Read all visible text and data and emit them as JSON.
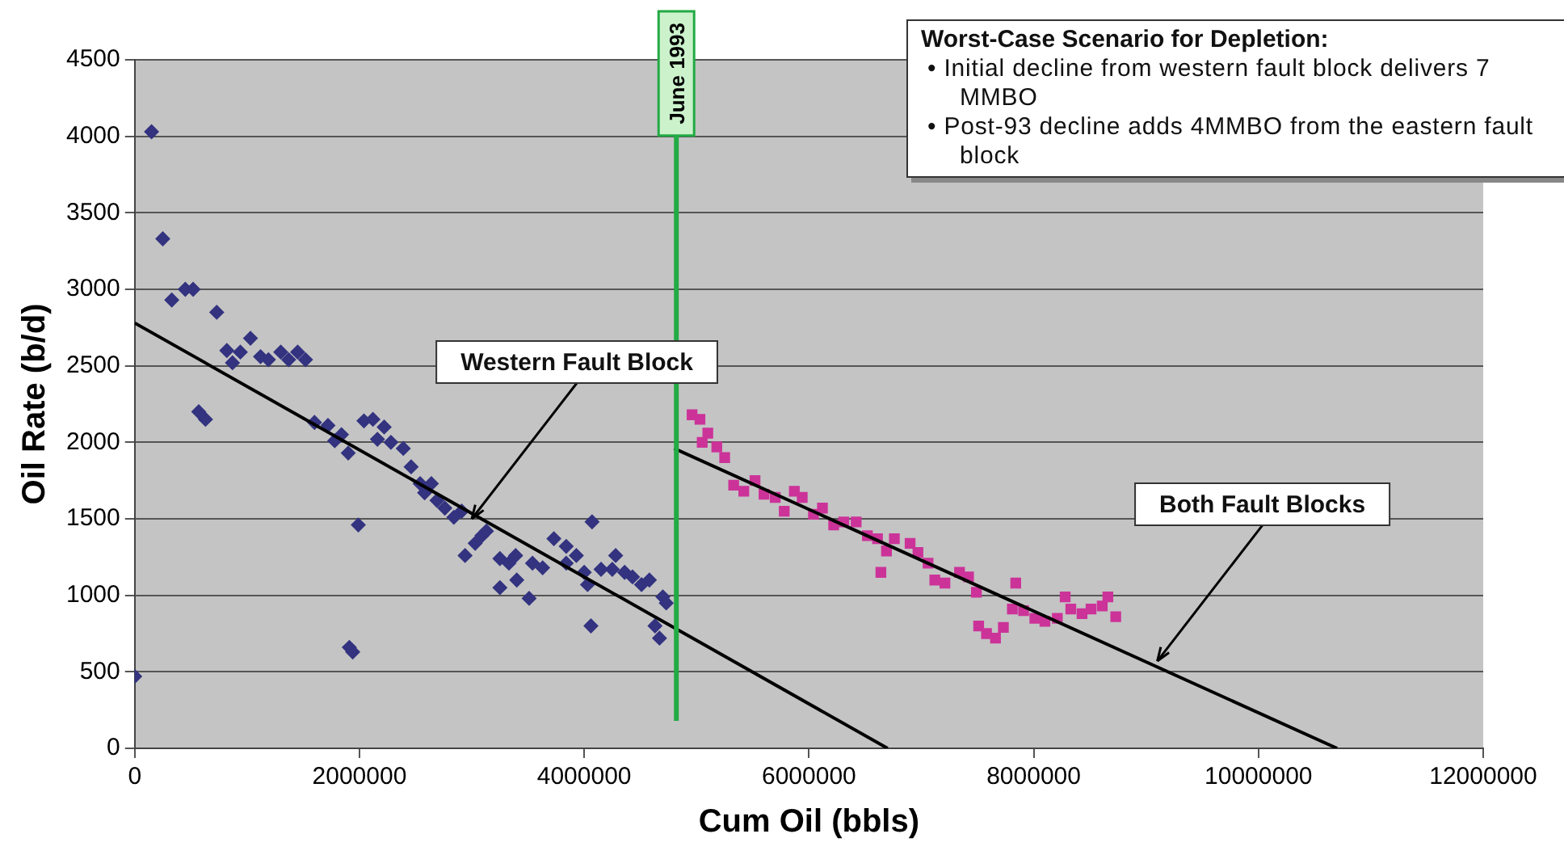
{
  "chart_data": {
    "type": "scatter",
    "xlabel": "Cum Oil (bbls)",
    "ylabel": "Oil Rate (b/d)",
    "xlim": [
      0,
      12000000
    ],
    "xticks": [
      0,
      2000000,
      4000000,
      6000000,
      8000000,
      10000000,
      12000000
    ],
    "ylim": [
      0,
      4500
    ],
    "yticks": [
      0,
      500,
      1000,
      1500,
      2000,
      2500,
      3000,
      3500,
      4000,
      4500
    ],
    "grid": "y",
    "legend": false,
    "series": [
      {
        "type": "scatter",
        "color": "#333380",
        "marker": "diamond",
        "x": [
          0,
          150000,
          250000,
          330000,
          450000,
          520000,
          730000,
          1030000,
          820000,
          870000,
          940000,
          1120000,
          1190000,
          1300000,
          1370000,
          1450000,
          1520000,
          570000,
          630000,
          1600000,
          1720000,
          1840000,
          1780000,
          1900000,
          2040000,
          2120000,
          2220000,
          2160000,
          2280000,
          2390000,
          2460000,
          2540000,
          2640000,
          2580000,
          2690000,
          2760000,
          2840000,
          2910000,
          1990000,
          1910000,
          1940000,
          2940000,
          3030000,
          3090000,
          3130000,
          3250000,
          3330000,
          3390000,
          3250000,
          3400000,
          3510000,
          3540000,
          3630000,
          3730000,
          3840000,
          3930000,
          3840000,
          4000000,
          4070000,
          4030000,
          4060000,
          4150000,
          4280000,
          4250000,
          4360000,
          4430000,
          4510000,
          4580000,
          4700000,
          4730000,
          4630000,
          4670000
        ],
        "values": [
          470,
          4030,
          3330,
          2930,
          3000,
          3000,
          2850,
          2680,
          2600,
          2520,
          2590,
          2560,
          2540,
          2590,
          2540,
          2590,
          2540,
          2200,
          2150,
          2130,
          2110,
          2050,
          2010,
          1930,
          2140,
          2150,
          2100,
          2020,
          2000,
          1960,
          1840,
          1730,
          1730,
          1670,
          1620,
          1570,
          1510,
          1550,
          1460,
          660,
          630,
          1260,
          1340,
          1390,
          1420,
          1240,
          1210,
          1260,
          1050,
          1100,
          980,
          1210,
          1180,
          1370,
          1320,
          1260,
          1210,
          1150,
          1480,
          1070,
          800,
          1170,
          1260,
          1170,
          1150,
          1120,
          1070,
          1100,
          990,
          950,
          800,
          720
        ]
      },
      {
        "type": "scatter",
        "color": "#cc3399",
        "marker": "square",
        "x": [
          4960000,
          5030000,
          5100000,
          5050000,
          5180000,
          5250000,
          5330000,
          5420000,
          5520000,
          5600000,
          5700000,
          5780000,
          5870000,
          5940000,
          6040000,
          6120000,
          6220000,
          6310000,
          6420000,
          6520000,
          6610000,
          6690000,
          6640000,
          6760000,
          6900000,
          6970000,
          7060000,
          7120000,
          7210000,
          7340000,
          7420000,
          7490000,
          7510000,
          7580000,
          7660000,
          7730000,
          7810000,
          7840000,
          7910000,
          8010000,
          8100000,
          8210000,
          8280000,
          8330000,
          8430000,
          8510000,
          8610000,
          8660000,
          8730000
        ],
        "values": [
          2180,
          2150,
          2060,
          2000,
          1970,
          1900,
          1720,
          1680,
          1750,
          1660,
          1640,
          1550,
          1680,
          1640,
          1530,
          1570,
          1460,
          1480,
          1480,
          1390,
          1370,
          1290,
          1150,
          1370,
          1340,
          1280,
          1210,
          1100,
          1080,
          1150,
          1120,
          1020,
          800,
          750,
          720,
          790,
          910,
          1080,
          900,
          850,
          830,
          850,
          990,
          910,
          880,
          910,
          930,
          990,
          860
        ]
      },
      {
        "type": "line",
        "color": "#000000",
        "marker": "none",
        "x": [
          0,
          6700000
        ],
        "values": [
          2780,
          0
        ]
      },
      {
        "type": "line",
        "color": "#000000",
        "marker": "none",
        "x": [
          4800000,
          10700000
        ],
        "values": [
          1960,
          0
        ]
      }
    ],
    "ref_lines": [
      {
        "axis": "x",
        "value": 4820000,
        "label": "June 1993",
        "color": "#22aa44"
      }
    ],
    "annotations": [
      {
        "text": "Western Fault Block",
        "x": 3000000,
        "y": 1500
      },
      {
        "text": "Both Fault Blocks",
        "x": 9100000,
        "y": 570
      },
      "Worst-Case Scenario for Depletion:",
      "• Initial decline from western fault block delivers 7 MMBO",
      "• Post-93 decline adds 4MMBO from the eastern fault block"
    ]
  }
}
